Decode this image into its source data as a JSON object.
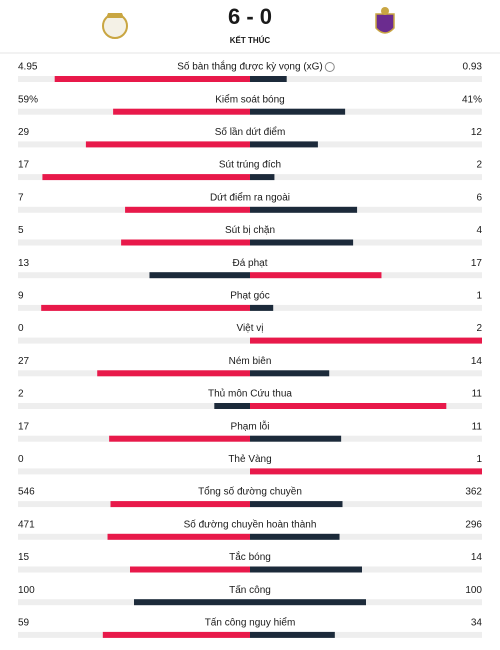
{
  "header": {
    "score": "6 - 0",
    "status": "KẾT THÚC"
  },
  "stats": [
    {
      "label": "Số bàn thắng được kỳ vọng (xG)",
      "values": [
        4.95,
        0.93
      ]
    },
    {
      "label": "Kiểm soát bóng",
      "values": [
        59,
        41
      ],
      "value_labels": [
        "59%",
        "41%"
      ]
    },
    {
      "label": "Số lần dứt điểm",
      "values": [
        29,
        12
      ]
    },
    {
      "label": "Sút trúng đích",
      "values": [
        17,
        2
      ]
    },
    {
      "label": "Dứt điểm ra ngoài",
      "values": [
        7,
        6
      ]
    },
    {
      "label": "Sút bị chặn",
      "values": [
        5,
        4
      ]
    },
    {
      "label": "Đá phạt",
      "values": [
        13,
        17
      ]
    },
    {
      "label": "Phạt góc",
      "values": [
        9,
        1
      ]
    },
    {
      "label": "Việt vị",
      "values": [
        0,
        2
      ]
    },
    {
      "label": "Ném biên",
      "values": [
        27,
        14
      ]
    },
    {
      "label": "Thủ môn Cứu thua",
      "values": [
        2,
        11
      ]
    },
    {
      "label": "Phạm lỗi",
      "values": [
        17,
        11
      ]
    },
    {
      "label": "Thẻ Vàng",
      "values": [
        0,
        1
      ]
    },
    {
      "label": "Tổng số đường chuyền",
      "values": [
        546,
        362
      ]
    },
    {
      "label": "Số đường chuyền hoàn thành",
      "values": [
        471,
        296
      ]
    },
    {
      "label": "Tắc bóng",
      "values": [
        15,
        14
      ]
    },
    {
      "label": "Tấn công",
      "values": [
        100,
        100
      ]
    },
    {
      "label": "Tấn công nguy hiểm",
      "values": [
        59,
        34
      ]
    }
  ]
}
